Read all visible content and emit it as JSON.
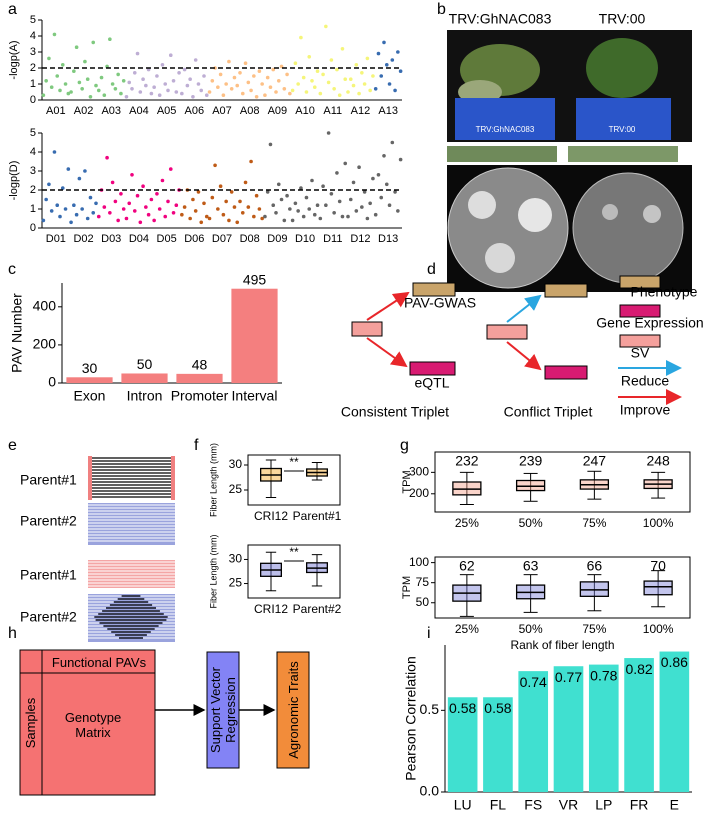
{
  "panel_labels": [
    "a",
    "b",
    "c",
    "d",
    "e",
    "f",
    "g",
    "h",
    "i"
  ],
  "photo_b": {
    "labels": [
      "TRV:GhNAC083",
      "TRV:00"
    ],
    "pot_labels": [
      "TRV:GhNAC083",
      "TRV:00"
    ]
  },
  "diagram_d": {
    "top_left": "PAV-GWAS",
    "bottom_left": "eQTL",
    "captions": [
      "Consistent Triplet",
      "Conflict Triplet"
    ],
    "legend": [
      "Phenotype",
      "Gene Expression",
      "SV",
      "Reduce",
      "Improve"
    ]
  },
  "diagram_e": {
    "labels": [
      "Parent#1",
      "Parent#2",
      "Parent#1",
      "Parent#2"
    ]
  },
  "diagram_h": {
    "columns": "Functional PAVs",
    "rows": "Samples",
    "matrix": "Genotype Matrix",
    "model": "Support Vector Regression",
    "output": "Agronomic Traits"
  },
  "chart_data": [
    {
      "type": "manhattan",
      "ylabel": "-logp(A)",
      "ylim": [
        0,
        5
      ],
      "yticks": [
        0,
        1,
        2,
        3,
        4,
        5
      ],
      "threshold": 2,
      "series": [
        {
          "name": "A01",
          "color": "#7fc97f",
          "values": [
            0.3,
            1.2,
            2.6,
            0.8,
            4.1,
            1.5,
            0.6,
            2.2,
            1.0,
            0.4
          ]
        },
        {
          "name": "A02",
          "color": "#7fc97f",
          "values": [
            0.5,
            1.8,
            3.3,
            1.1,
            0.7,
            2.4,
            1.3,
            0.2,
            3.6,
            0.9
          ]
        },
        {
          "name": "A03",
          "color": "#7fc97f",
          "values": [
            0.6,
            1.4,
            0.3,
            2.1,
            3.8,
            1.0,
            0.7,
            1.6,
            0.4,
            1.2
          ]
        },
        {
          "name": "A04",
          "color": "#beaed4",
          "values": [
            0.2,
            1.1,
            0.7,
            1.7,
            2.9,
            0.5,
            1.3,
            0.9,
            1.9,
            0.4
          ]
        },
        {
          "name": "A05",
          "color": "#beaed4",
          "values": [
            0.8,
            1.5,
            0.3,
            2.2,
            1.0,
            0.6,
            2.8,
            1.2,
            0.5,
            1.7
          ]
        },
        {
          "name": "A06",
          "color": "#beaed4",
          "values": [
            0.4,
            1.9,
            0.9,
            1.3,
            0.2,
            2.5,
            1.0,
            0.6,
            1.5,
            0.3
          ]
        },
        {
          "name": "A07",
          "color": "#fdc086",
          "values": [
            0.5,
            1.2,
            2.0,
            0.8,
            1.6,
            0.3,
            1.0,
            2.4,
            0.7,
            1.4
          ]
        },
        {
          "name": "A08",
          "color": "#fdc086",
          "values": [
            0.9,
            1.7,
            0.4,
            2.3,
            1.1,
            0.6,
            1.5,
            0.2,
            1.8,
            1.0
          ]
        },
        {
          "name": "A09",
          "color": "#fdc086",
          "values": [
            0.3,
            1.4,
            0.8,
            1.9,
            0.5,
            1.2,
            2.1,
            0.7,
            1.6,
            0.4
          ]
        },
        {
          "name": "A10",
          "color": "#f5f57a",
          "values": [
            0.6,
            2.3,
            1.0,
            3.9,
            1.4,
            0.5,
            2.7,
            1.2,
            0.8,
            1.8
          ]
        },
        {
          "name": "A11",
          "color": "#f5f57a",
          "values": [
            0.4,
            1.6,
            4.6,
            1.1,
            2.5,
            0.7,
            1.9,
            0.3,
            3.2,
            1.3
          ]
        },
        {
          "name": "A12",
          "color": "#f5f57a",
          "values": [
            0.5,
            1.3,
            0.9,
            2.2,
            0.4,
            1.7,
            1.0,
            2.6,
            0.6,
            1.5
          ]
        },
        {
          "name": "A13",
          "color": "#386cb0",
          "values": [
            0.7,
            2.9,
            1.5,
            3.6,
            2.2,
            1.0,
            2.5,
            0.6,
            3.0,
            1.8
          ]
        }
      ]
    },
    {
      "type": "manhattan",
      "ylabel": "-logp(D)",
      "ylim": [
        0,
        5
      ],
      "yticks": [
        0,
        1,
        2,
        3,
        4,
        5
      ],
      "threshold": 2,
      "series": [
        {
          "name": "D01",
          "color": "#386cb0",
          "values": [
            0.4,
            1.5,
            2.3,
            0.9,
            4.0,
            1.2,
            0.6,
            2.1,
            1.0,
            3.1
          ]
        },
        {
          "name": "D02",
          "color": "#386cb0",
          "values": [
            0.3,
            1.2,
            0.7,
            2.6,
            1.0,
            3.0,
            0.5,
            1.6,
            0.8,
            1.3
          ]
        },
        {
          "name": "D03",
          "color": "#f0027f",
          "values": [
            0.6,
            2.0,
            1.1,
            3.7,
            0.8,
            2.4,
            1.4,
            0.4,
            1.8,
            1.0
          ]
        },
        {
          "name": "D04",
          "color": "#f0027f",
          "values": [
            0.5,
            1.3,
            2.8,
            0.9,
            1.7,
            0.3,
            2.2,
            1.1,
            0.7,
            1.5
          ]
        },
        {
          "name": "D05",
          "color": "#f0027f",
          "values": [
            0.4,
            1.8,
            1.0,
            2.5,
            0.6,
            1.4,
            3.1,
            0.8,
            1.2,
            2.0
          ]
        },
        {
          "name": "D06",
          "color": "#bf5b17",
          "values": [
            0.7,
            1.1,
            2.0,
            0.5,
            1.5,
            0.9,
            1.9,
            0.3,
            1.3,
            0.6
          ]
        },
        {
          "name": "D07",
          "color": "#bf5b17",
          "values": [
            0.5,
            1.6,
            3.3,
            1.0,
            2.2,
            0.7,
            1.4,
            0.4,
            1.9,
            1.1
          ]
        },
        {
          "name": "D08",
          "color": "#bf5b17",
          "values": [
            0.3,
            1.4,
            0.8,
            2.4,
            1.1,
            3.5,
            0.6,
            1.7,
            1.0,
            0.5
          ]
        },
        {
          "name": "D09",
          "color": "#666666",
          "values": [
            0.6,
            1.9,
            4.4,
            1.2,
            0.8,
            2.3,
            1.5,
            0.4,
            1.7,
            1.0
          ]
        },
        {
          "name": "D10",
          "color": "#666666",
          "values": [
            0.4,
            1.3,
            0.9,
            2.1,
            0.6,
            1.6,
            1.0,
            2.5,
            0.7,
            1.2
          ]
        },
        {
          "name": "D11",
          "color": "#666666",
          "values": [
            0.5,
            2.2,
            1.2,
            5.0,
            1.8,
            0.8,
            2.9,
            1.4,
            0.6,
            3.4
          ]
        },
        {
          "name": "D12",
          "color": "#666666",
          "values": [
            0.6,
            1.5,
            2.4,
            0.9,
            3.2,
            1.1,
            1.9,
            0.5,
            1.3,
            2.6
          ]
        },
        {
          "name": "D13",
          "color": "#666666",
          "values": [
            0.7,
            2.8,
            1.6,
            3.8,
            2.3,
            1.2,
            4.5,
            1.9,
            0.9,
            3.6
          ]
        }
      ]
    },
    {
      "type": "bar",
      "ylabel": "PAV Number",
      "categories": [
        "Exon",
        "Intron",
        "Promoter",
        "Interval"
      ],
      "values": [
        30,
        50,
        48,
        495
      ],
      "color": "#f47f7f",
      "ylim": [
        0,
        525
      ],
      "yticks": [
        0,
        200,
        400
      ]
    },
    {
      "type": "box",
      "ylabel": "Fiber Length (mm)",
      "categories": [
        "CRI12",
        "Parent#1"
      ],
      "color": "#f5a623",
      "significance": "**",
      "min": [
        23.5,
        27
      ],
      "q1": [
        26.8,
        27.8
      ],
      "median": [
        28,
        28.5
      ],
      "q3": [
        29.3,
        29.2
      ],
      "max": [
        31,
        30.5
      ],
      "ylim": [
        22,
        32
      ],
      "yticks": [
        25,
        30
      ]
    },
    {
      "type": "box",
      "ylabel": "Fiber Length (mm)",
      "categories": [
        "CRI12",
        "Parent#2"
      ],
      "color": "#6b6fd0",
      "significance": "**",
      "min": [
        23.5,
        24.5
      ],
      "q1": [
        26.5,
        27.3
      ],
      "median": [
        27.8,
        28.2
      ],
      "q3": [
        29.2,
        29.3
      ],
      "max": [
        31.5,
        31
      ],
      "ylim": [
        22,
        33
      ],
      "yticks": [
        25,
        30
      ]
    },
    {
      "type": "box",
      "ylabel": "TPM",
      "categories": [
        "25%",
        "50%",
        "75%",
        "100%"
      ],
      "color": "#f4a08a",
      "top_labels": [
        232,
        239,
        247,
        248
      ],
      "min": [
        150,
        165,
        175,
        180
      ],
      "q1": [
        195,
        215,
        222,
        225
      ],
      "median": [
        222,
        235,
        242,
        245
      ],
      "q3": [
        255,
        262,
        265,
        265
      ],
      "max": [
        300,
        295,
        305,
        300
      ],
      "ylim": [
        115,
        395
      ],
      "yticks": [
        200,
        300
      ]
    },
    {
      "type": "box",
      "ylabel": "TPM",
      "xlabel": "Rank of fiber length",
      "categories": [
        "25%",
        "50%",
        "75%",
        "100%"
      ],
      "color": "#7b7fd8",
      "top_labels": [
        62,
        63,
        66,
        70
      ],
      "min": [
        33,
        38,
        40,
        45
      ],
      "q1": [
        52,
        55,
        58,
        60
      ],
      "median": [
        62,
        63,
        66,
        70
      ],
      "q3": [
        72,
        72,
        76,
        77
      ],
      "max": [
        85,
        85,
        85,
        90
      ],
      "ylim": [
        31,
        107
      ],
      "yticks": [
        50,
        75,
        100
      ]
    },
    {
      "type": "bar",
      "ylabel": "Pearson Correlation",
      "categories": [
        "LU",
        "FL",
        "FS",
        "VR",
        "LP",
        "FR",
        "E"
      ],
      "values": [
        0.58,
        0.58,
        0.74,
        0.77,
        0.78,
        0.82,
        0.86
      ],
      "color": "#40e0d0",
      "ylim": [
        0,
        0.9
      ],
      "yticks": [
        {
          "value": 0,
          "label": "0.0"
        },
        0.5
      ]
    }
  ]
}
